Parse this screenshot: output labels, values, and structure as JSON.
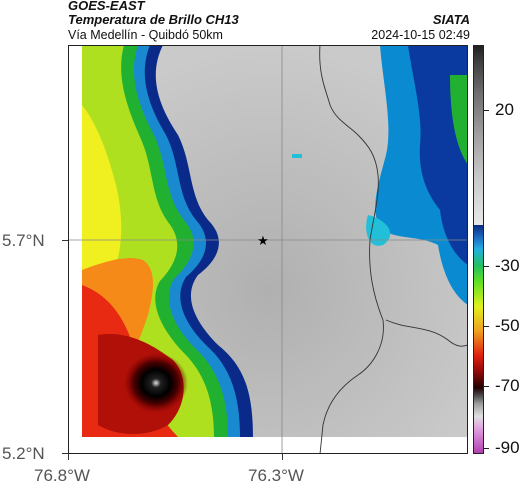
{
  "header": {
    "satellite": "GOES-EAST",
    "product": "Temperatura de Brillo CH13",
    "region": "Vía Medellín - Quibdó 50km",
    "source": "SIATA",
    "datetime": "2024-10-15 02:49"
  },
  "axes": {
    "lat_labels": [
      "5.7°N",
      "5.2°N"
    ],
    "lon_labels": [
      "76.8°W",
      "76.3°W"
    ]
  },
  "colorbar": {
    "labels": [
      "20",
      "-30",
      "-50",
      "-70",
      "-90"
    ]
  },
  "marker": {
    "symbol": "★",
    "name": "location-star"
  }
}
